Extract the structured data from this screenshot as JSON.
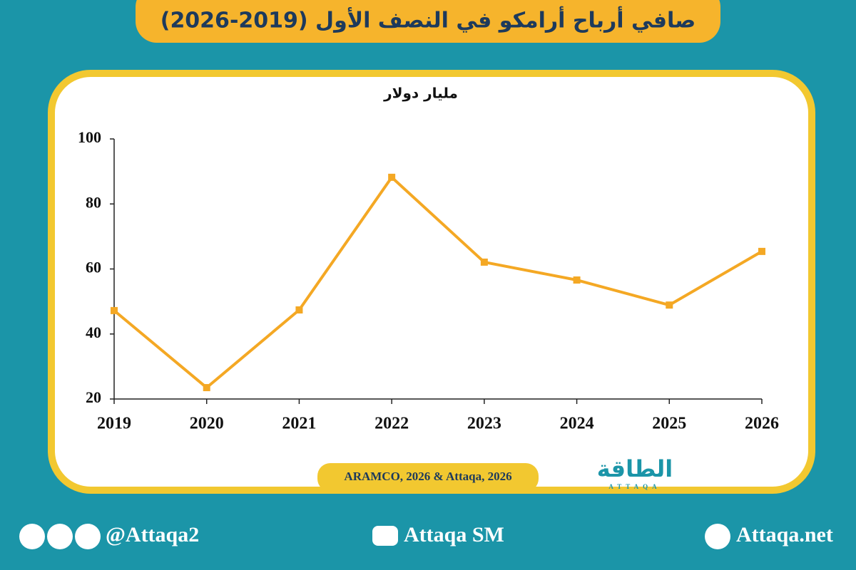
{
  "chart_data": {
    "type": "line",
    "title": "صافي أرباح أرامكو في النصف الأول (2019-2026)",
    "y_axis_label": "مليار دولار",
    "categories": [
      "2019",
      "2020",
      "2021",
      "2022",
      "2023",
      "2024",
      "2025",
      "2026"
    ],
    "values": [
      47.2,
      23.5,
      47.4,
      88.2,
      62.1,
      56.6,
      48.9,
      65.4
    ],
    "color": "#f4a824",
    "ylim": [
      20,
      100
    ],
    "yticks": [
      20,
      40,
      60,
      80,
      100
    ],
    "source": "ARAMCO, 2026 & Attaqa, 2026"
  },
  "logo": {
    "name": "الطاقة",
    "latin": "ATTAQA"
  },
  "footer": {
    "left": "@Attaqa2",
    "center": "Attaqa SM",
    "right": "Attaqa.net"
  }
}
